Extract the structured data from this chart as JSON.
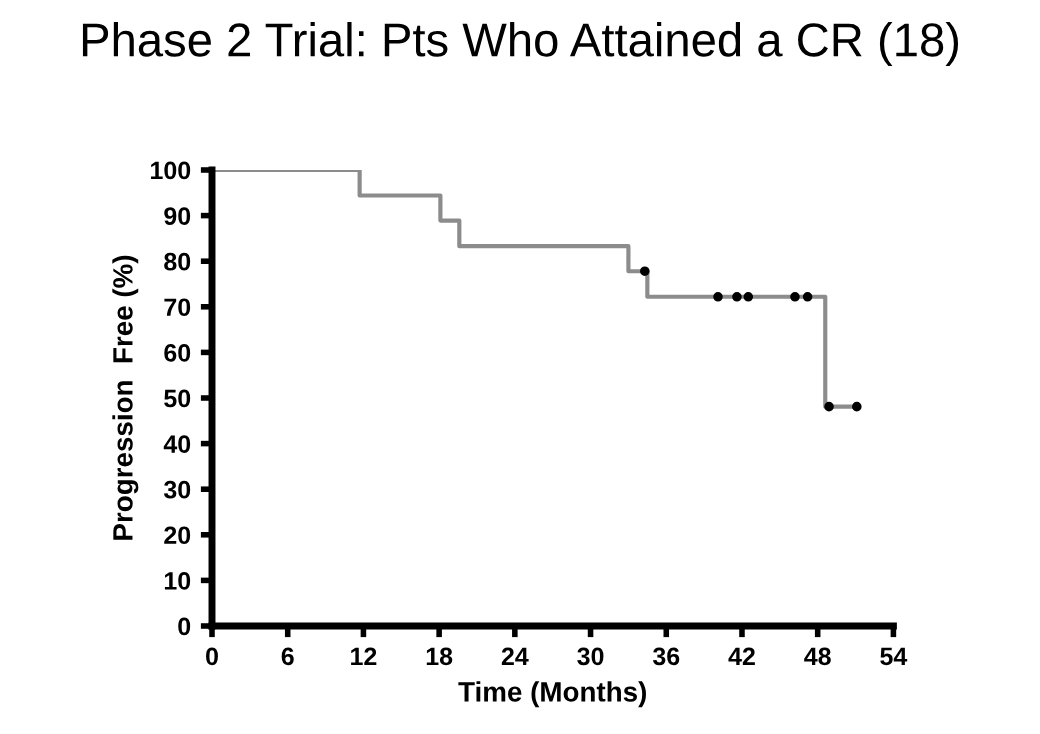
{
  "chart_data": {
    "type": "step",
    "title": "Phase 2 Trial: Pts Who Attained a CR (18)",
    "xlabel": "Time (Months)",
    "ylabel": "Progression  Free (%)",
    "series": [
      {
        "color": "#8c8c8c",
        "x": [
          0,
          11.7,
          18.1,
          19.6,
          33.0,
          34.5,
          48.6,
          51.1
        ],
        "values": [
          100,
          94.4,
          88.9,
          83.3,
          77.8,
          72.2,
          48.1,
          48.1
        ],
        "marker": "none",
        "line_style": "solid"
      },
      {
        "type": "scatter",
        "color": "#000000",
        "x": [
          34.3,
          40.1,
          41.6,
          42.5,
          46.2,
          47.2,
          48.9,
          51.1
        ],
        "values": [
          77.8,
          72.2,
          72.2,
          72.2,
          72.2,
          72.2,
          48.1,
          48.1
        ],
        "marker": "circle"
      }
    ],
    "xlim": [
      0,
      54
    ],
    "xticks": [
      0,
      6,
      12,
      18,
      24,
      30,
      36,
      42,
      48,
      54
    ],
    "ylim": [
      0,
      100
    ],
    "yticks": [
      0,
      10,
      20,
      30,
      40,
      50,
      60,
      70,
      80,
      90,
      100
    ],
    "grid": false,
    "legend": false
  }
}
